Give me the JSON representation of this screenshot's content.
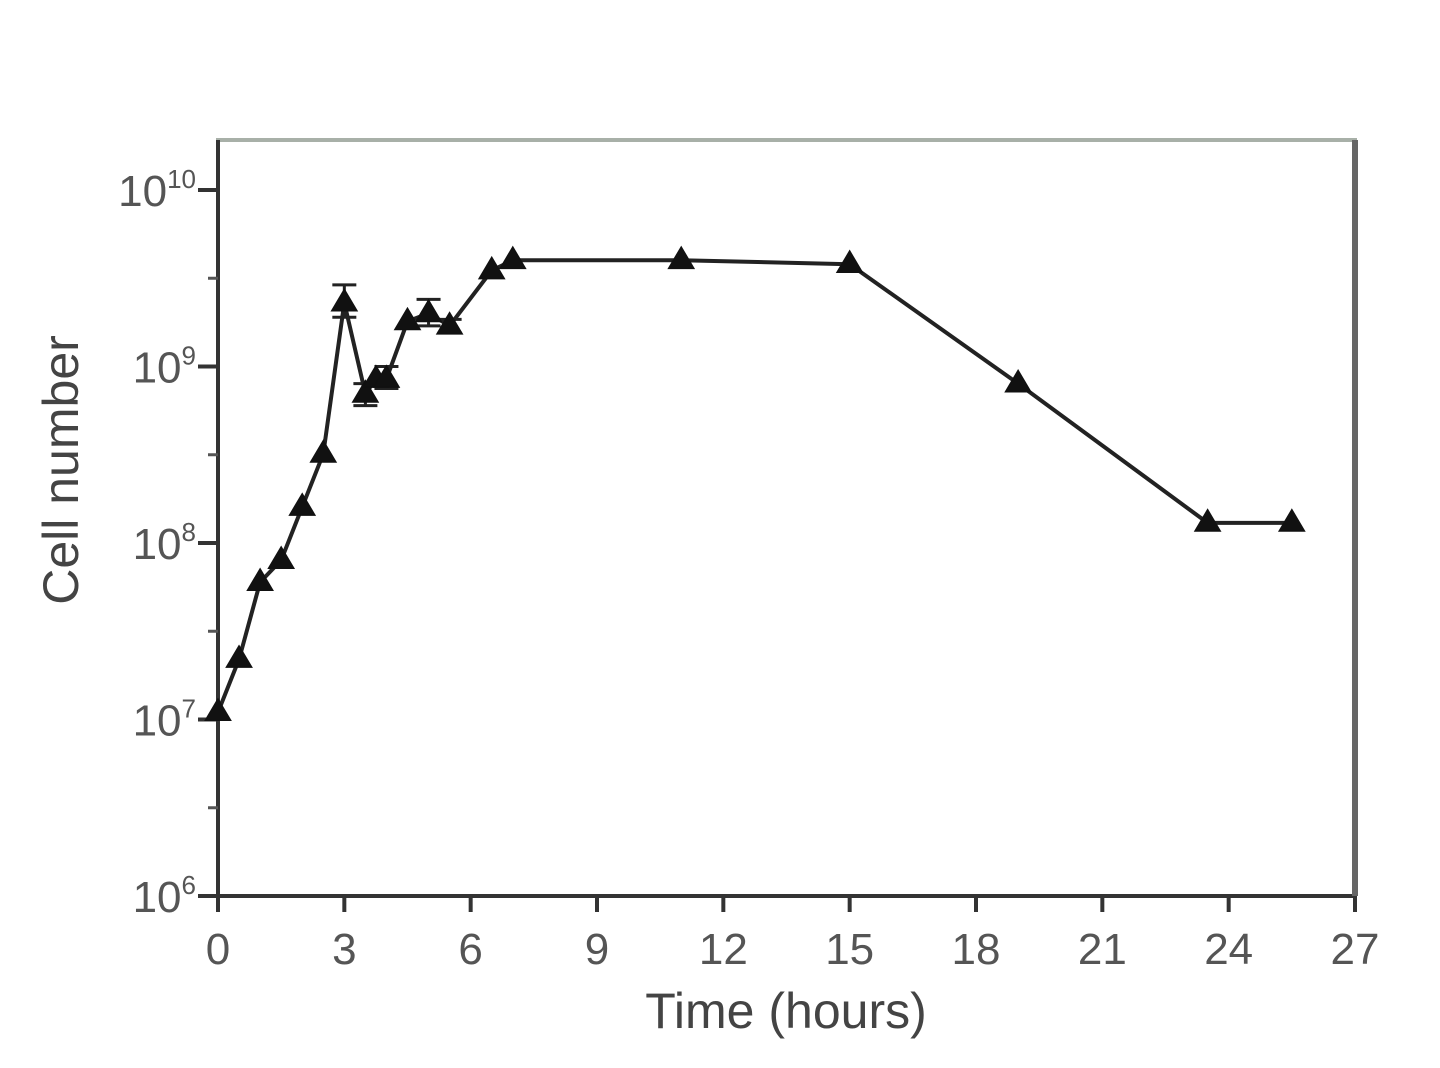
{
  "chart_data": {
    "type": "line",
    "title": "",
    "xlabel": "Time (hours)",
    "ylabel": "Cell number",
    "x_scale": "linear",
    "y_scale": "log",
    "xlim": [
      0,
      27
    ],
    "ylim": [
      1000000,
      100000000000
    ],
    "x_ticks": [
      0,
      3,
      6,
      9,
      12,
      15,
      18,
      21,
      24,
      27
    ],
    "x_tick_labels": [
      "0",
      "3",
      "6",
      "9",
      "12",
      "15",
      "18",
      "21",
      "24",
      "27"
    ],
    "y_ticks": [
      1000000,
      10000000,
      100000000,
      1000000000,
      10000000000
    ],
    "y_tick_labels": [
      {
        "base": "10",
        "exp": "6"
      },
      {
        "base": "10",
        "exp": "7"
      },
      {
        "base": "10",
        "exp": "8"
      },
      {
        "base": "10",
        "exp": "9"
      },
      {
        "base": "10",
        "exp": "10"
      }
    ],
    "grid": false,
    "legend": "none",
    "marker": "triangle",
    "series": [
      {
        "x": [
          0,
          0.5,
          1,
          1.5,
          2,
          2.5,
          3,
          3.5,
          3.75,
          4,
          4.5,
          5,
          5.5,
          6.5,
          7,
          11,
          15,
          19,
          23.5,
          25.5
        ],
        "y": [
          11000000,
          22000000,
          60000000,
          80000000,
          160000000,
          320000000,
          2300000000,
          700000000,
          850000000,
          850000000,
          1800000000,
          2000000000,
          1700000000,
          3500000000,
          4000000000,
          4000000000,
          3800000000,
          800000000,
          130000000,
          130000000
        ],
        "err_plus": [
          0,
          0,
          0,
          0,
          0,
          0,
          600000000,
          100000000,
          0,
          150000000,
          0,
          400000000,
          150000000,
          0,
          0,
          0,
          0,
          0,
          0,
          0
        ],
        "err_minus": [
          0,
          0,
          0,
          0,
          0,
          0,
          400000000,
          100000000,
          0,
          100000000,
          0,
          300000000,
          150000000,
          0,
          0,
          0,
          0,
          0,
          0,
          0
        ]
      }
    ]
  }
}
